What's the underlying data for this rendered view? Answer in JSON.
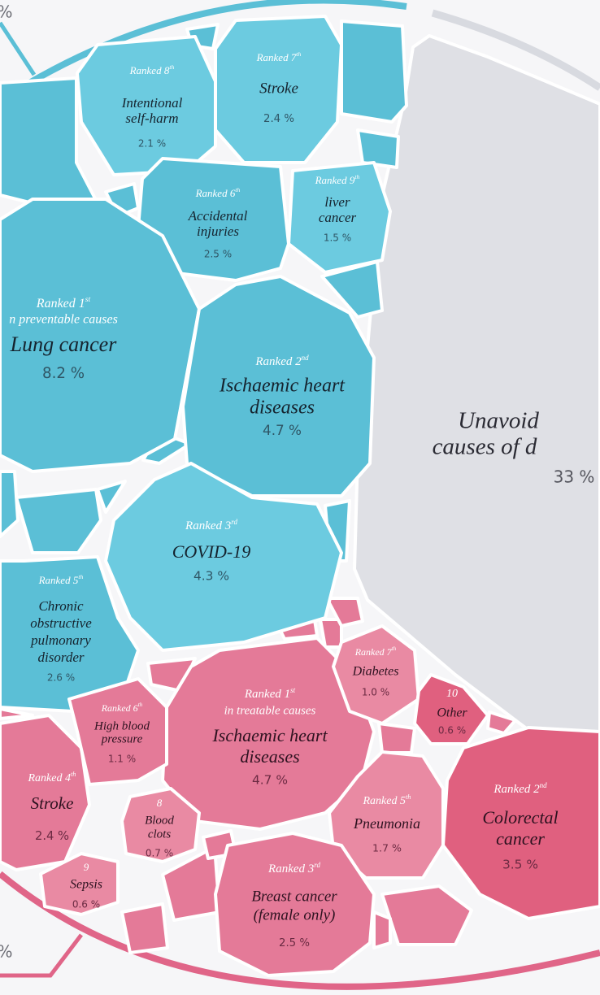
{
  "edge_labels": [
    "%",
    "%"
  ],
  "unavoidable": {
    "name": [
      "Unavoid",
      "causes of d"
    ],
    "value": "33 %"
  },
  "preventable": [
    {
      "rank": {
        "text": "Ranked 8",
        "sup": "th"
      },
      "name": [
        "Intentional",
        "self-harm"
      ],
      "value": "2.1 %"
    },
    {
      "rank": {
        "text": "Ranked 7",
        "sup": "th"
      },
      "name": [
        "Stroke"
      ],
      "value": "2.4 %"
    },
    {
      "rank": {
        "text": "Ranked 9",
        "sup": "th"
      },
      "name": [
        "liver",
        "cancer"
      ],
      "value": "1.5 %"
    },
    {
      "rank": {
        "text": "Ranked 6",
        "sup": "th"
      },
      "name": [
        "Accidental",
        "injuries"
      ],
      "value": "2.5 %"
    },
    {
      "rank": {
        "text": "Ranked 1",
        "sup": "st"
      },
      "note": "n preventable causes",
      "name": [
        "Lung cancer"
      ],
      "value": "8.2 %"
    },
    {
      "rank": {
        "text": "Ranked 2",
        "sup": "nd"
      },
      "name": [
        "Ischaemic heart",
        "diseases"
      ],
      "value": "4.7 %"
    },
    {
      "rank": {
        "text": "Ranked 3",
        "sup": "rd"
      },
      "name": [
        "COVID-19"
      ],
      "value": "4.3 %"
    },
    {
      "rank": {
        "text": "Ranked 5",
        "sup": "th"
      },
      "name": [
        "Chronic",
        "obstructive",
        "pulmonary",
        "disorder"
      ],
      "value": "2.6 %"
    }
  ],
  "treatable": [
    {
      "rank": {
        "text": "Ranked 1",
        "sup": "st"
      },
      "note": "in treatable causes",
      "name": [
        "Ischaemic heart",
        "diseases"
      ],
      "value": "4.7 %"
    },
    {
      "rank": {
        "text": "Ranked 7",
        "sup": "th"
      },
      "name": [
        "Diabetes"
      ],
      "value": "1.0 %"
    },
    {
      "rank": {
        "text": "10"
      },
      "name": [
        "Other"
      ],
      "value": "0.6 %"
    },
    {
      "rank": {
        "text": "Ranked 2",
        "sup": "nd"
      },
      "name": [
        "Colorectal",
        "cancer"
      ],
      "value": "3.5 %"
    },
    {
      "rank": {
        "text": "Ranked 5",
        "sup": "th"
      },
      "name": [
        "Pneumonia"
      ],
      "value": "1.7 %"
    },
    {
      "rank": {
        "text": "Ranked 3",
        "sup": "rd"
      },
      "name": [
        "Breast cancer",
        "(female only)"
      ],
      "value": "2.5 %"
    },
    {
      "rank": {
        "text": "Ranked 4",
        "sup": "th"
      },
      "name": [
        "Stroke"
      ],
      "value": "2.4 %"
    },
    {
      "rank": {
        "text": "Ranked 6",
        "sup": "th"
      },
      "name": [
        "High blood",
        "pressure"
      ],
      "value": "1.1 %"
    },
    {
      "rank": {
        "text": "8"
      },
      "name": [
        "Blood",
        "clots"
      ],
      "value": "0.7 %"
    },
    {
      "rank": {
        "text": "9"
      },
      "name": [
        "Sepsis"
      ],
      "value": "0.6 %"
    }
  ]
}
